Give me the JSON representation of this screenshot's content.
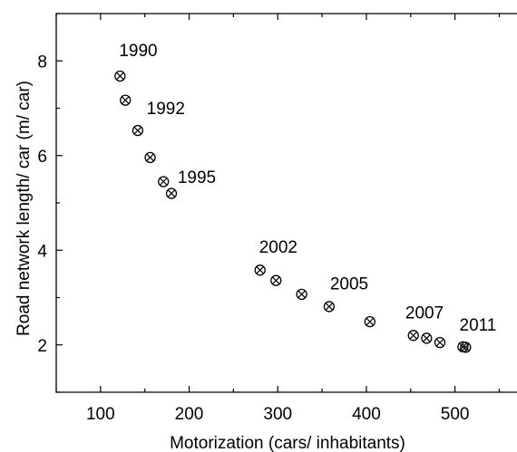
{
  "chart_data": {
    "type": "scatter",
    "xlabel": "Motorization (cars/ inhabitants)",
    "ylabel": "Road network length/ car (m/ car)",
    "xlim": [
      50,
      570
    ],
    "ylim": [
      1,
      9
    ],
    "xticks": [
      100,
      200,
      300,
      400,
      500
    ],
    "yticks": [
      2,
      4,
      6,
      8
    ],
    "grid": false,
    "marker": "circle-x",
    "points": [
      {
        "x": 122,
        "y": 7.68
      },
      {
        "x": 128,
        "y": 7.17
      },
      {
        "x": 142,
        "y": 6.53
      },
      {
        "x": 156,
        "y": 5.96
      },
      {
        "x": 171,
        "y": 5.45
      },
      {
        "x": 180,
        "y": 5.2
      },
      {
        "x": 280,
        "y": 3.58
      },
      {
        "x": 298,
        "y": 3.36
      },
      {
        "x": 327,
        "y": 3.07
      },
      {
        "x": 358,
        "y": 2.81
      },
      {
        "x": 404,
        "y": 2.49
      },
      {
        "x": 453,
        "y": 2.2
      },
      {
        "x": 468,
        "y": 2.14
      },
      {
        "x": 483,
        "y": 2.05
      },
      {
        "x": 509,
        "y": 1.96
      },
      {
        "x": 512,
        "y": 1.95
      }
    ],
    "annotations": [
      {
        "text": "1990",
        "x": 121,
        "y": 8.1
      },
      {
        "text": "1992",
        "x": 152,
        "y": 6.88
      },
      {
        "text": "1995",
        "x": 187,
        "y": 5.42
      },
      {
        "text": "2002",
        "x": 279,
        "y": 3.95
      },
      {
        "text": "2005",
        "x": 359,
        "y": 3.17
      },
      {
        "text": "2007",
        "x": 444,
        "y": 2.56
      },
      {
        "text": "2011",
        "x": 505,
        "y": 2.3
      }
    ]
  }
}
